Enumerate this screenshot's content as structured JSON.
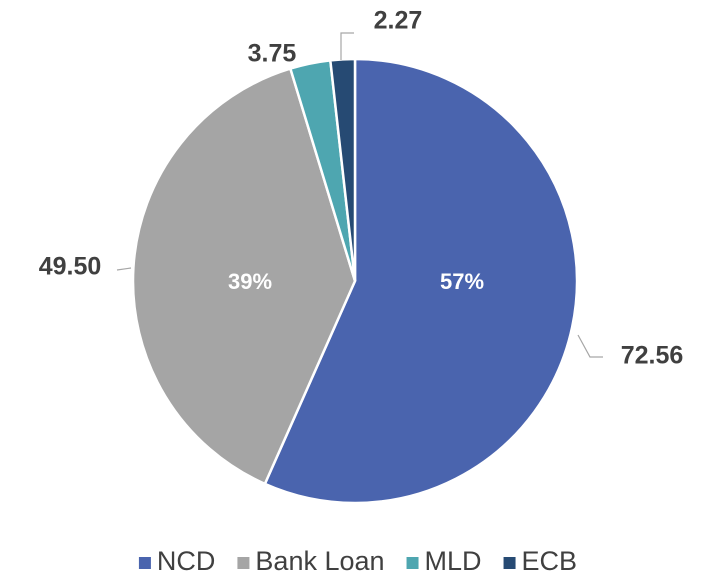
{
  "chart_data": {
    "type": "pie",
    "categories": [
      "NCD",
      "Bank Loan",
      "MLD",
      "ECB"
    ],
    "values": [
      72.56,
      49.5,
      3.75,
      2.27
    ],
    "value_labels": [
      "72.56",
      "49.50",
      "3.75",
      "2.27"
    ],
    "percent_labels": [
      "57%",
      "39%",
      null,
      null
    ],
    "colors": [
      "#4a64ae",
      "#a5a5a5",
      "#4ea6b0",
      "#264a73"
    ],
    "legend": "bottom"
  }
}
